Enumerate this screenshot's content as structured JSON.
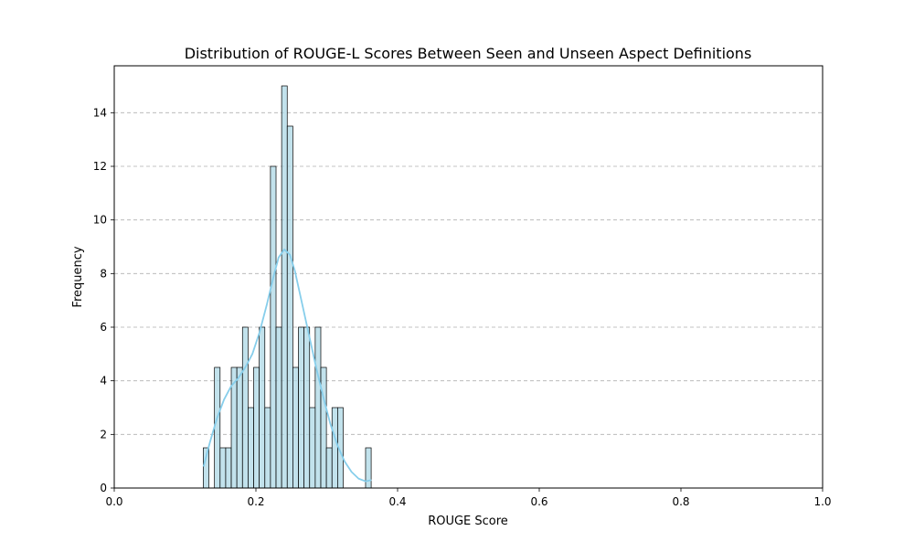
{
  "chart_data": {
    "type": "bar",
    "title": "Distribution of ROUGE-L Scores Between Seen and Unseen Aspect Definitions",
    "xlabel": "ROUGE Score",
    "ylabel": "Frequency",
    "xlim": [
      0.0,
      1.0
    ],
    "ylim": [
      0,
      15.75
    ],
    "x_ticks": [
      "0.0",
      "0.2",
      "0.4",
      "0.6",
      "0.8",
      "1.0"
    ],
    "x_tick_values": [
      0.0,
      0.2,
      0.4,
      0.6,
      0.8,
      1.0
    ],
    "y_ticks": [
      "0",
      "2",
      "4",
      "6",
      "8",
      "10",
      "12",
      "14"
    ],
    "y_tick_values": [
      0,
      2,
      4,
      6,
      8,
      10,
      12,
      14
    ],
    "grid": {
      "y": true,
      "x": false,
      "style": "dashed"
    },
    "bin_edges": [
      0.1257,
      0.1336,
      0.1415,
      0.1494,
      0.1573,
      0.1652,
      0.1731,
      0.181,
      0.1889,
      0.1968,
      0.2047,
      0.2126,
      0.2205,
      0.2284,
      0.2363,
      0.2442,
      0.2521,
      0.26,
      0.2679,
      0.2758,
      0.2837,
      0.2916,
      0.2995,
      0.3074,
      0.3153,
      0.3232,
      0.3311,
      0.339,
      0.3469,
      0.3548,
      0.3627
    ],
    "values": [
      1.5,
      0,
      4.5,
      1.5,
      1.5,
      4.5,
      4.5,
      6,
      3,
      4.5,
      6,
      3,
      12,
      6,
      15,
      13.5,
      4.5,
      6,
      6,
      3,
      6,
      4.5,
      1.5,
      3,
      3,
      0,
      0,
      0,
      0,
      1.5
    ],
    "kde": {
      "x": [
        0.126,
        0.135,
        0.145,
        0.155,
        0.165,
        0.175,
        0.185,
        0.195,
        0.205,
        0.215,
        0.225,
        0.232,
        0.24,
        0.248,
        0.255,
        0.265,
        0.275,
        0.285,
        0.295,
        0.305,
        0.315,
        0.325,
        0.335,
        0.345,
        0.355,
        0.363
      ],
      "y": [
        0.8,
        1.7,
        2.6,
        3.3,
        3.8,
        4.1,
        4.5,
        5.0,
        5.8,
        6.8,
        7.9,
        8.6,
        8.9,
        8.7,
        8.1,
        6.9,
        5.7,
        4.5,
        3.4,
        2.4,
        1.6,
        1.0,
        0.6,
        0.35,
        0.25,
        0.3
      ]
    },
    "colors": {
      "bar_fill": "#add8e6",
      "bar_edge": "#000000",
      "kde_line": "#87ceeb",
      "grid": "#b0b0b0"
    }
  }
}
